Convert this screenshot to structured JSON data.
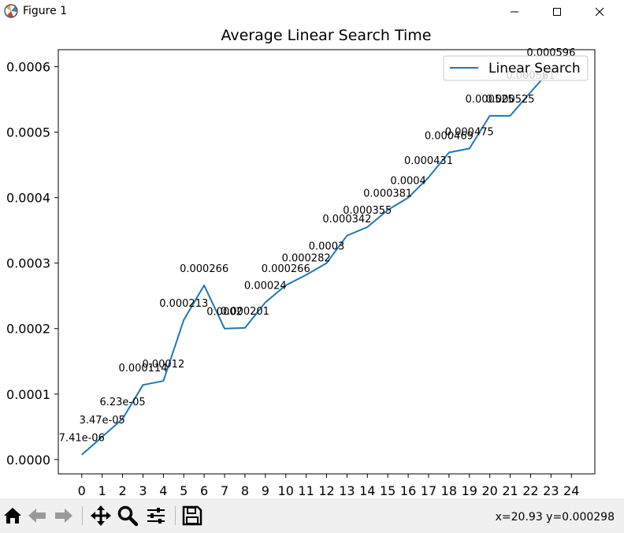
{
  "window": {
    "title": "Figure 1",
    "controls": [
      "minimize-icon",
      "maximize-icon",
      "close-icon"
    ]
  },
  "toolbar": {
    "tools": [
      "home-icon",
      "back-arrow-icon",
      "forward-arrow-icon",
      "pan-icon",
      "zoom-icon",
      "subplots-icon",
      "save-icon"
    ],
    "coordinates": "x=20.93 y=0.000298"
  },
  "colors": {
    "series": "#1f77b4",
    "background": "#ffffff",
    "toolbar": "#f0f0f0"
  },
  "chart_data": {
    "type": "line",
    "title": "Average Linear Search Time",
    "xlabel": "",
    "ylabel": "",
    "x": [
      0,
      1,
      2,
      3,
      4,
      5,
      6,
      7,
      8,
      9,
      10,
      11,
      12,
      13,
      14,
      15,
      16,
      17,
      18,
      19,
      20,
      21,
      22,
      23
    ],
    "series": [
      {
        "name": "Linear Search",
        "values": [
          7.41e-06,
          3.47e-05,
          6.23e-05,
          0.000114,
          0.00012,
          0.000213,
          0.000266,
          0.0002,
          0.000201,
          0.00024,
          0.000266,
          0.000282,
          0.0003,
          0.000342,
          0.000355,
          0.000381,
          0.0004,
          0.000431,
          0.000469,
          0.000475,
          0.000525,
          0.000525,
          0.000561,
          0.000596
        ]
      }
    ],
    "data_labels": [
      "7.41e-06",
      "3.47e-05",
      "6.23e-05",
      "0.000114",
      "0.00012",
      "0.000213",
      "0.000266",
      "0.0002",
      "0.000201",
      "0.00024",
      "0.000266",
      "0.000282",
      "0.0003",
      "0.000342",
      "0.000355",
      "0.000381",
      "0.0004",
      "0.000431",
      "0.000469",
      "0.000475",
      "0.000525",
      "0.000525",
      "0.000561",
      "0.000596"
    ],
    "xticks": [
      "0",
      "1",
      "2",
      "3",
      "4",
      "5",
      "6",
      "7",
      "8",
      "9",
      "10",
      "11",
      "12",
      "13",
      "14",
      "15",
      "16",
      "17",
      "18",
      "19",
      "20",
      "21",
      "22",
      "23",
      "24"
    ],
    "yticks": [
      "0.0000",
      "0.0001",
      "0.0002",
      "0.0003",
      "0.0004",
      "0.0005",
      "0.0006"
    ],
    "xlim": [
      -1.15,
      25.15
    ],
    "ylim": [
      -2.19e-05,
      0.000626
    ],
    "grid": false,
    "legend": "top-right"
  }
}
